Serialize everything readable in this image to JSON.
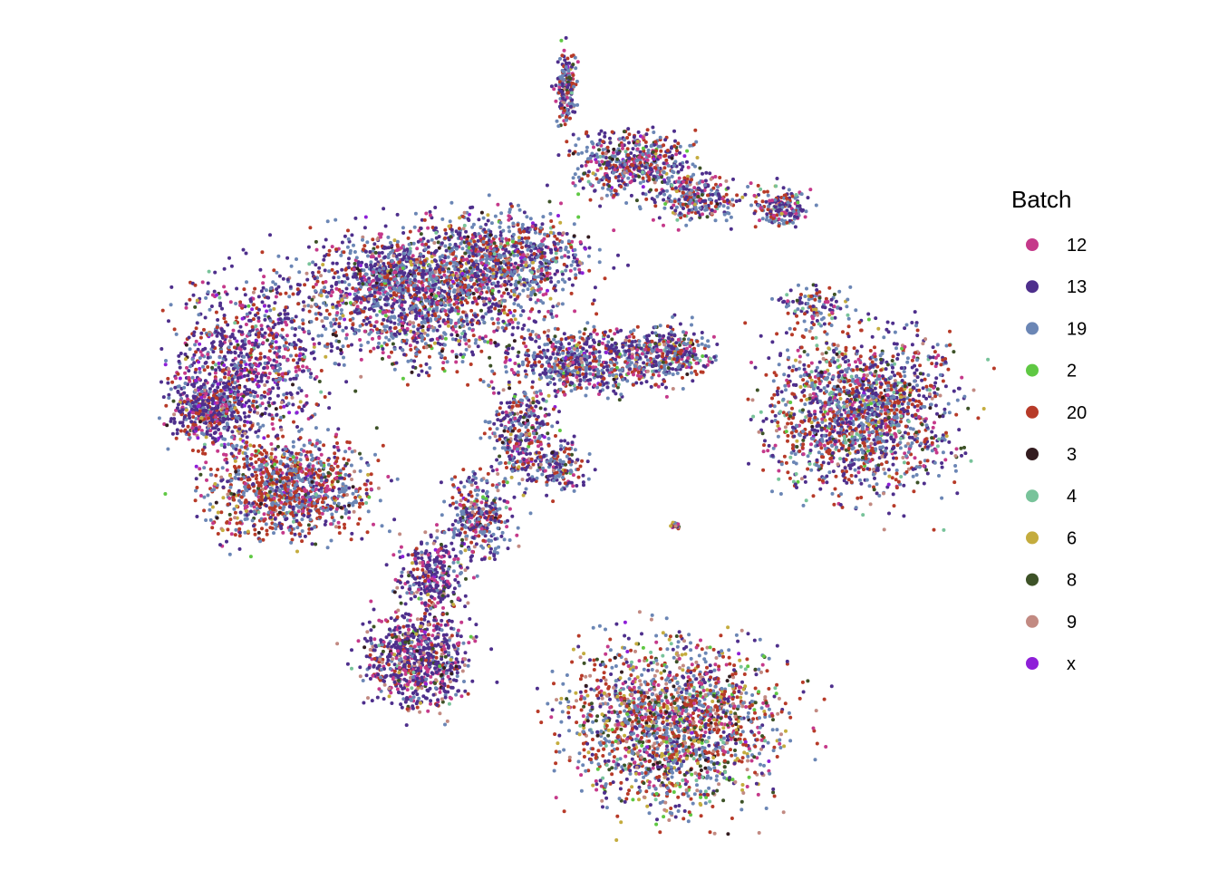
{
  "chart_data": {
    "type": "scatter",
    "title": "",
    "xlabel": "",
    "ylabel": "",
    "grid": false,
    "axes_visible": false,
    "legend": {
      "title": "Batch",
      "placement": "right",
      "entries": [
        {
          "label": "12",
          "color": "#C5398A"
        },
        {
          "label": "13",
          "color": "#4E2F8C"
        },
        {
          "label": "19",
          "color": "#6B86B5"
        },
        {
          "label": "2",
          "color": "#5FC843"
        },
        {
          "label": "20",
          "color": "#B73A28"
        },
        {
          "label": "3",
          "color": "#331C20"
        },
        {
          "label": "4",
          "color": "#78C39A"
        },
        {
          "label": "6",
          "color": "#C4AC3E"
        },
        {
          "label": "8",
          "color": "#3D5227"
        },
        {
          "label": "9",
          "color": "#C28A82"
        },
        {
          "label": "x",
          "color": "#8E1FD8"
        }
      ]
    }
  }
}
